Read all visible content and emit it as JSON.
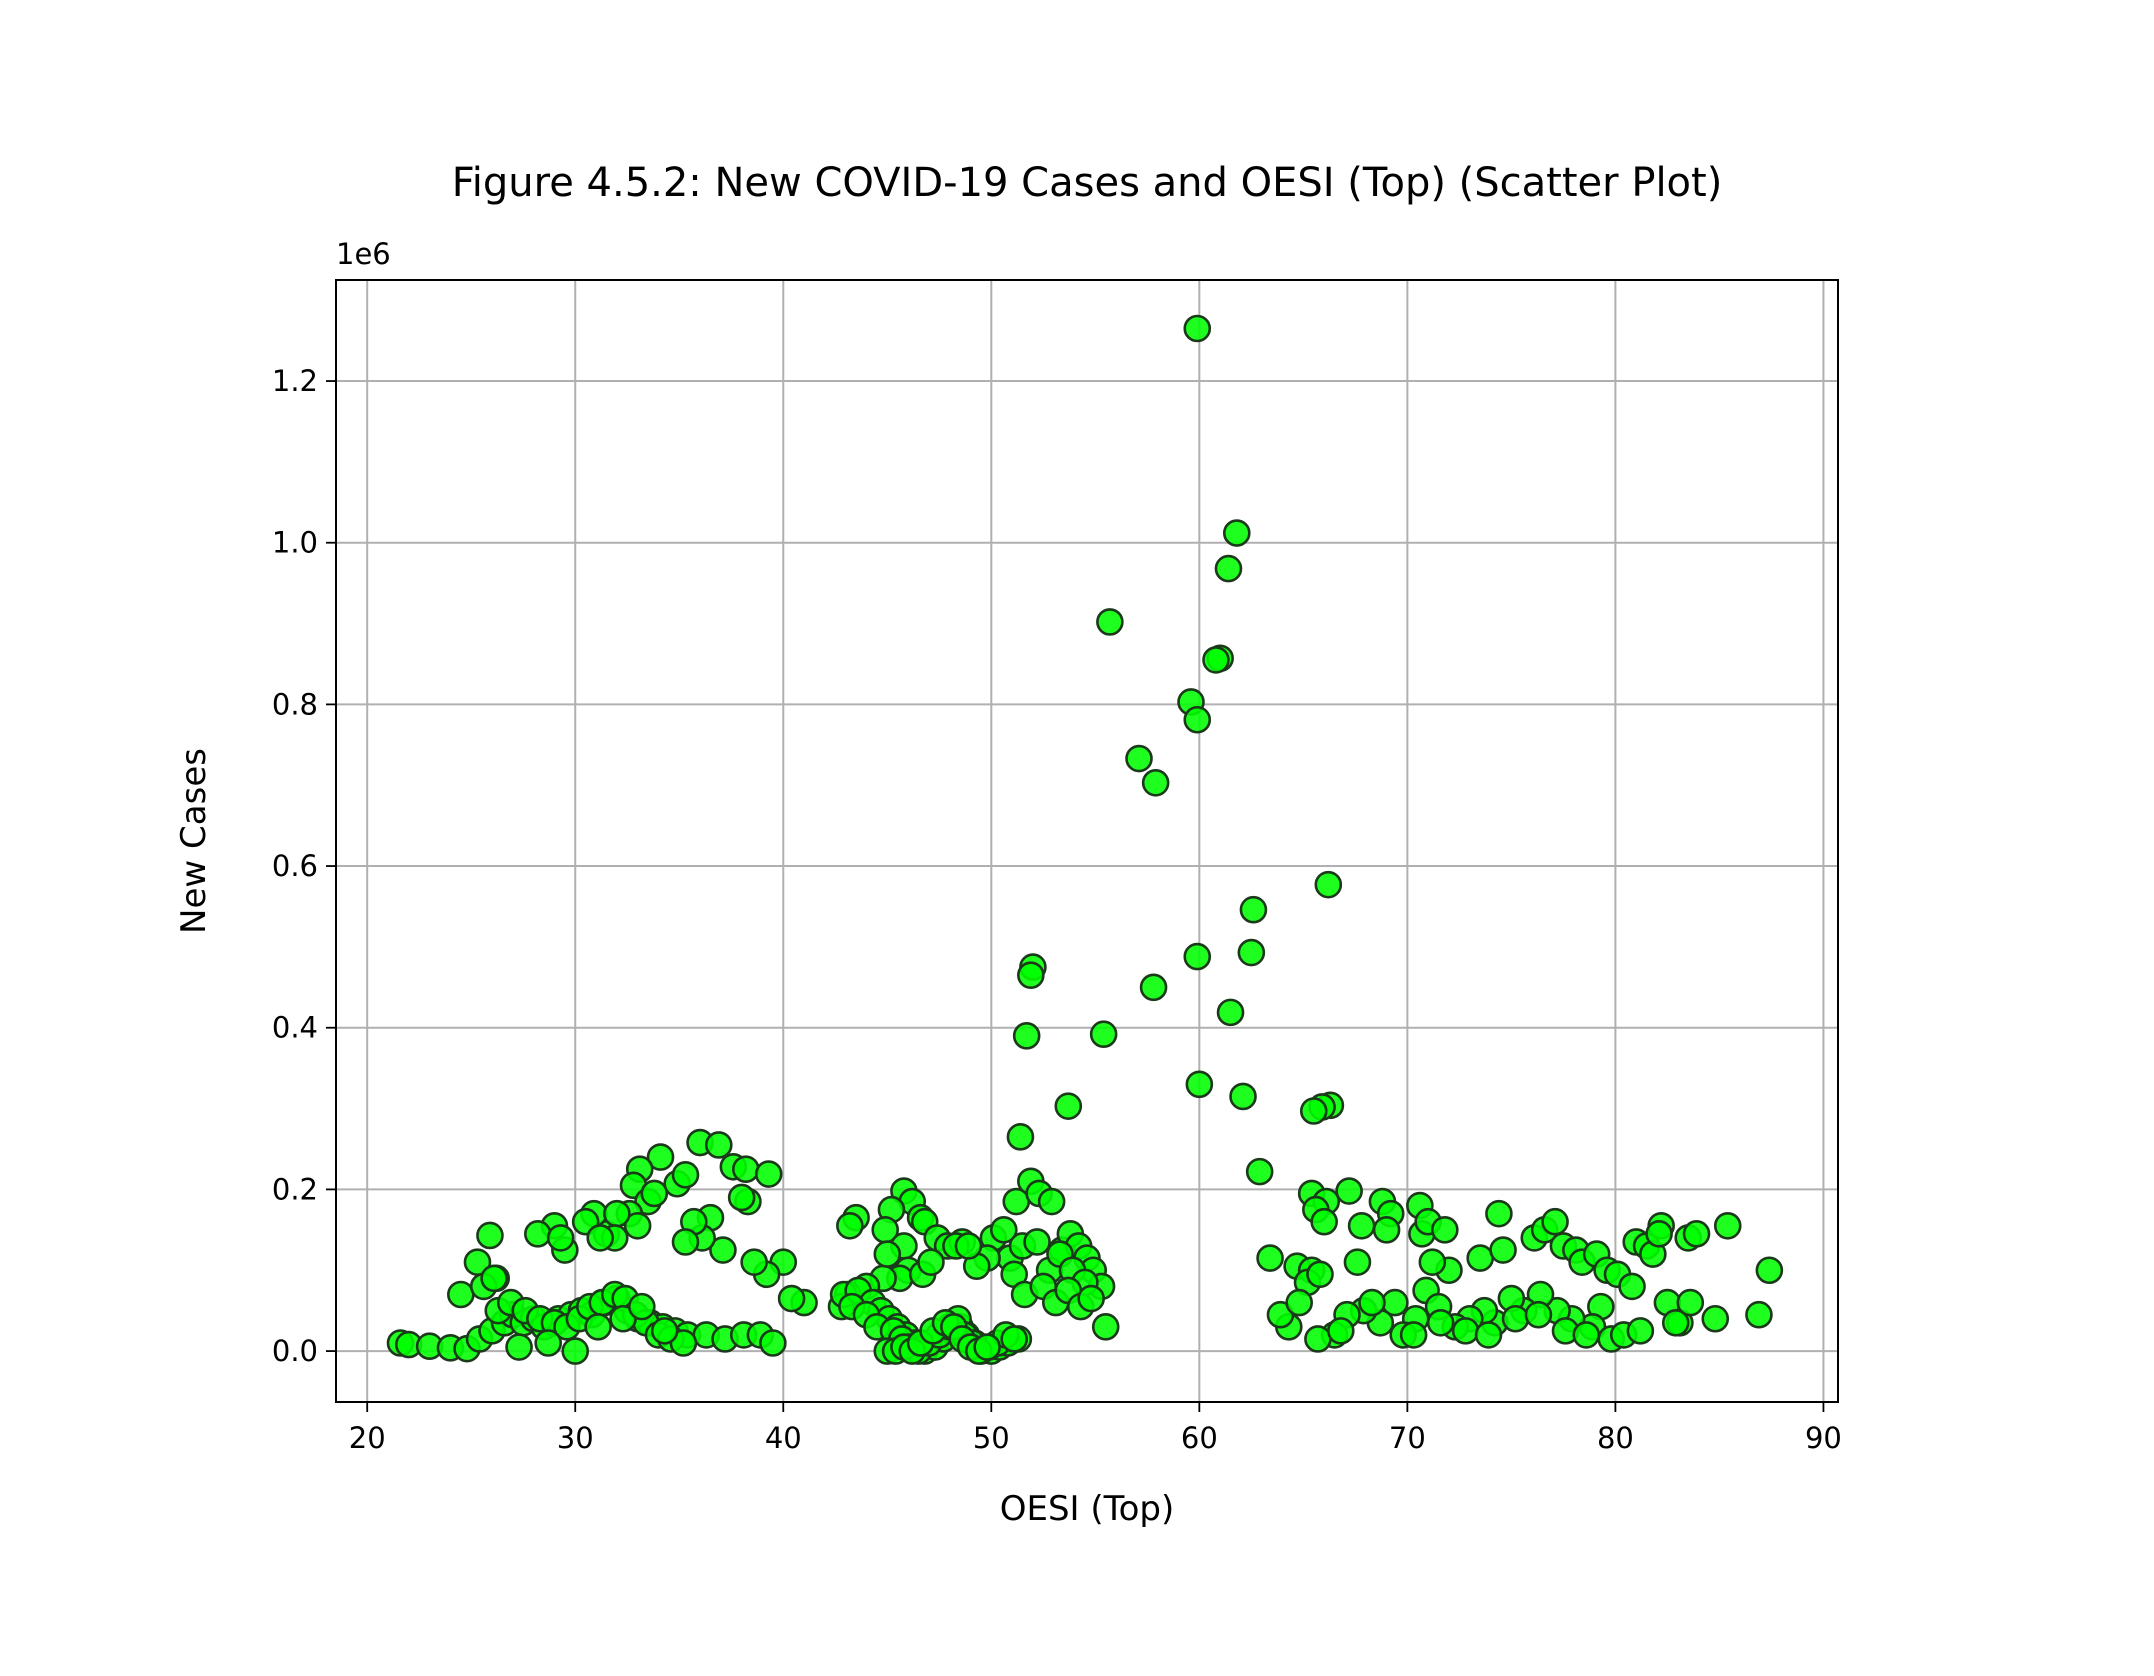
{
  "chart_data": {
    "type": "scatter",
    "title": "Figure 4.5.2: New COVID-19 Cases and OESI (Top) (Scatter Plot)",
    "xlabel": "OESI (Top)",
    "ylabel": "New Cases",
    "y_offset_label": "1e6",
    "xlim": [
      18.5,
      90.7
    ],
    "ylim": [
      -0.063,
      1.325
    ],
    "y_scale_multiplier": 1000000,
    "x_ticks": [
      20,
      30,
      40,
      50,
      60,
      70,
      80,
      90
    ],
    "x_tick_labels": [
      "20",
      "30",
      "40",
      "50",
      "60",
      "70",
      "80",
      "90"
    ],
    "y_ticks": [
      0.0,
      0.2,
      0.4,
      0.6,
      0.8,
      1.0,
      1.2
    ],
    "y_tick_labels": [
      "0.0",
      "0.2",
      "0.4",
      "0.6",
      "0.8",
      "1.0",
      "1.2"
    ],
    "grid": true,
    "marker_color": "#00ff00",
    "marker_edge_color": "#1a3a1a",
    "background_color": "#ffffff",
    "series": [
      {
        "x": [
          59.9,
          61.8,
          61.4,
          55.7,
          61.0,
          60.8,
          59.6,
          59.9,
          57.1,
          57.9,
          66.2,
          62.6,
          62.5,
          59.9,
          52.0,
          51.9,
          57.8,
          61.5,
          51.7,
          55.4,
          60.0,
          62.1,
          66.3,
          65.9,
          65.5,
          53.7,
          51.4,
          62.9,
          36.0,
          36.9,
          37.6,
          38.2,
          39.3,
          34.1,
          33.1,
          32.8,
          34.9,
          35.3,
          33.5,
          32.6,
          31.5,
          30.9,
          30.5,
          29.0,
          28.2,
          29.5,
          29.3,
          25.9,
          25.3,
          24.5,
          26.2,
          25.6,
          36.5,
          38.3,
          38.0,
          37.1,
          36.1,
          35.7,
          35.3,
          33.8,
          33.0,
          32.0,
          31.9,
          31.2,
          45.8,
          46.2,
          46.6,
          45.2,
          44.9,
          46.8,
          47.4,
          43.5,
          43.2,
          45.8,
          46.0,
          47.9,
          48.6,
          45.6,
          44.8,
          46.7,
          45.0,
          47.1,
          48.3,
          44.0,
          43.1,
          42.8,
          41.0,
          40.4,
          40.0,
          39.2,
          38.6,
          50.1,
          50.6,
          51.2,
          51.9,
          52.3,
          52.9,
          53.4,
          53.8,
          54.2,
          54.6,
          54.9,
          55.3,
          50.9,
          51.5,
          52.2,
          52.8,
          53.3,
          53.9,
          54.5,
          51.1,
          51.6,
          52.5,
          53.1,
          53.7,
          54.3,
          54.8,
          55.5,
          49.8,
          49.3,
          48.9,
          65.4,
          66.1,
          67.2,
          65.6,
          66.0,
          63.4,
          64.7,
          65.4,
          65.2,
          65.8,
          67.8,
          67.6,
          68.8,
          69.2,
          69.0,
          70.6,
          70.7,
          71.0,
          72.0,
          71.8,
          71.2,
          70.9,
          73.5,
          74.4,
          74.6,
          76.1,
          76.6,
          77.1,
          77.5,
          78.1,
          78.4,
          79.1,
          79.6,
          80.1,
          81.0,
          81.5,
          81.8,
          82.2,
          82.1,
          83.5,
          83.9,
          85.4,
          87.4,
          86.9,
          84.8,
          83.1,
          82.5,
          80.8,
          79.3,
          78.9,
          77.9,
          77.2,
          76.4,
          75.6,
          75.0,
          74.2,
          73.7,
          73.0,
          72.3,
          71.5,
          70.4,
          69.4,
          68.7,
          67.9,
          67.1,
          66.5,
          65.7,
          64.3,
          63.9,
          64.8,
          66.8,
          68.3,
          69.8,
          70.3,
          71.6,
          72.8,
          73.9,
          75.2,
          76.3,
          77.6,
          78.6,
          79.8,
          80.4,
          81.2,
          82.9,
          83.6,
          21.6,
          22.0,
          23.0,
          24.0,
          24.8,
          25.4,
          26.0,
          26.6,
          27.0,
          27.5,
          28.0,
          28.5,
          29.2,
          29.8,
          30.3,
          30.8,
          31.4,
          32.0,
          32.5,
          33.0,
          33.6,
          34.2,
          34.8,
          35.4,
          36.3,
          37.2,
          38.1,
          38.9,
          39.5,
          26.3,
          26.9,
          27.6,
          28.3,
          29.0,
          29.6,
          30.2,
          30.7,
          31.3,
          31.9,
          32.4,
          32.9,
          33.4,
          34.0,
          34.6,
          35.2,
          26.1,
          27.3,
          28.7,
          30.0,
          31.1,
          32.3,
          33.2,
          34.3,
          42.9,
          43.6,
          44.3,
          44.7,
          45.1,
          45.5,
          45.9,
          46.3,
          46.8,
          47.3,
          47.7,
          48.1,
          48.5,
          48.8,
          49.2,
          49.6,
          50.0,
          50.4,
          50.8,
          51.3,
          43.3,
          44.0,
          44.5,
          45.3,
          45.7,
          46.1,
          46.5,
          47.0,
          47.5,
          48.0,
          48.4,
          48.7,
          49.1,
          49.5,
          49.9,
          50.3,
          50.7,
          51.1,
          45.0,
          45.4,
          45.8,
          46.2,
          46.6,
          47.2,
          47.8,
          48.2,
          48.6,
          49.0,
          49.4,
          49.8
        ],
        "y": [
          1.265,
          1.012,
          0.968,
          0.902,
          0.857,
          0.855,
          0.803,
          0.781,
          0.733,
          0.703,
          0.577,
          0.546,
          0.493,
          0.488,
          0.475,
          0.465,
          0.45,
          0.419,
          0.39,
          0.392,
          0.33,
          0.315,
          0.304,
          0.302,
          0.297,
          0.303,
          0.265,
          0.222,
          0.258,
          0.255,
          0.228,
          0.225,
          0.219,
          0.24,
          0.225,
          0.205,
          0.207,
          0.218,
          0.185,
          0.17,
          0.145,
          0.17,
          0.16,
          0.155,
          0.145,
          0.125,
          0.14,
          0.143,
          0.11,
          0.07,
          0.09,
          0.08,
          0.165,
          0.185,
          0.19,
          0.125,
          0.14,
          0.16,
          0.135,
          0.195,
          0.155,
          0.17,
          0.14,
          0.14,
          0.198,
          0.185,
          0.165,
          0.175,
          0.15,
          0.16,
          0.14,
          0.165,
          0.155,
          0.13,
          0.1,
          0.13,
          0.135,
          0.09,
          0.09,
          0.095,
          0.12,
          0.11,
          0.13,
          0.08,
          0.07,
          0.055,
          0.06,
          0.065,
          0.11,
          0.095,
          0.11,
          0.14,
          0.15,
          0.185,
          0.21,
          0.195,
          0.185,
          0.125,
          0.145,
          0.13,
          0.115,
          0.1,
          0.08,
          0.115,
          0.13,
          0.135,
          0.1,
          0.12,
          0.1,
          0.085,
          0.095,
          0.07,
          0.08,
          0.06,
          0.075,
          0.055,
          0.065,
          0.03,
          0.115,
          0.105,
          0.13,
          0.195,
          0.185,
          0.198,
          0.175,
          0.16,
          0.115,
          0.105,
          0.1,
          0.085,
          0.095,
          0.155,
          0.11,
          0.185,
          0.17,
          0.15,
          0.18,
          0.145,
          0.16,
          0.1,
          0.15,
          0.11,
          0.075,
          0.115,
          0.17,
          0.125,
          0.14,
          0.15,
          0.16,
          0.13,
          0.125,
          0.11,
          0.12,
          0.1,
          0.095,
          0.135,
          0.13,
          0.12,
          0.155,
          0.145,
          0.14,
          0.145,
          0.155,
          0.1,
          0.045,
          0.04,
          0.035,
          0.06,
          0.08,
          0.055,
          0.03,
          0.04,
          0.05,
          0.07,
          0.05,
          0.065,
          0.035,
          0.05,
          0.04,
          0.03,
          0.055,
          0.04,
          0.06,
          0.035,
          0.05,
          0.045,
          0.02,
          0.015,
          0.03,
          0.045,
          0.06,
          0.025,
          0.06,
          0.02,
          0.02,
          0.035,
          0.025,
          0.02,
          0.04,
          0.045,
          0.025,
          0.02,
          0.015,
          0.02,
          0.025,
          0.035,
          0.06,
          0.01,
          0.008,
          0.006,
          0.004,
          0.003,
          0.015,
          0.025,
          0.035,
          0.045,
          0.035,
          0.04,
          0.03,
          0.04,
          0.045,
          0.05,
          0.045,
          0.06,
          0.065,
          0.05,
          0.04,
          0.035,
          0.03,
          0.025,
          0.02,
          0.02,
          0.015,
          0.02,
          0.02,
          0.01,
          0.05,
          0.06,
          0.05,
          0.04,
          0.035,
          0.03,
          0.04,
          0.055,
          0.06,
          0.07,
          0.065,
          0.045,
          0.035,
          0.02,
          0.015,
          0.01,
          0.09,
          0.005,
          0.01,
          0.0,
          0.03,
          0.04,
          0.055,
          0.025,
          0.07,
          0.075,
          0.06,
          0.05,
          0.04,
          0.03,
          0.02,
          0.01,
          0.0,
          0.005,
          0.015,
          0.025,
          0.03,
          0.02,
          0.01,
          0.005,
          0.0,
          0.005,
          0.01,
          0.015,
          0.055,
          0.045,
          0.03,
          0.025,
          0.015,
          0.005,
          0.0,
          0.01,
          0.02,
          0.03,
          0.04,
          0.02,
          0.01,
          0.0,
          0.005,
          0.01,
          0.02,
          0.015,
          0.0,
          0.0,
          0.005,
          0.0,
          0.01,
          0.025,
          0.035,
          0.03,
          0.015,
          0.005,
          0.0,
          0.005
        ]
      }
    ]
  }
}
